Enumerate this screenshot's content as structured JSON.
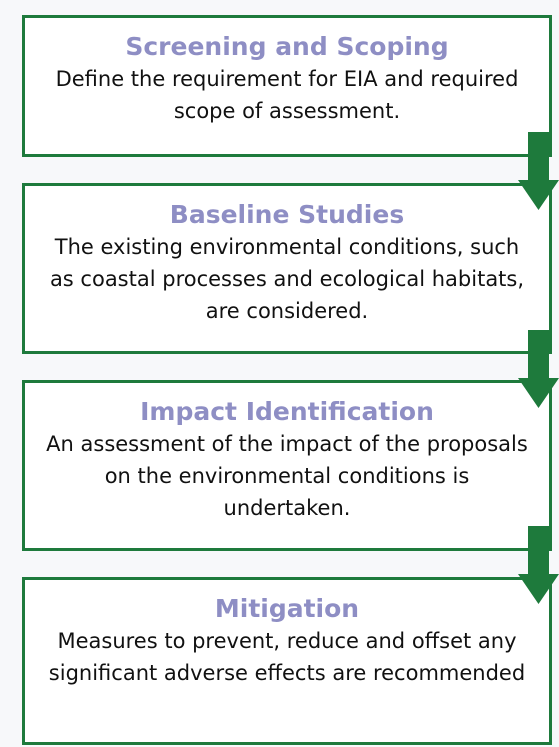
{
  "steps": [
    {
      "title": "Screening and Scoping",
      "text": "Define the requirement for EIA and required scope of assessment."
    },
    {
      "title": "Baseline Studies",
      "text": "The existing environmental conditions, such as coastal processes and ecological habitats, are considered."
    },
    {
      "title": "Impact Identification",
      "text": "An assessment of the impact of the proposals on the environmental conditions is undertaken."
    },
    {
      "title": "Mitigation",
      "text": "Measures to prevent, reduce and offset any significant adverse effects are recommended"
    }
  ]
}
